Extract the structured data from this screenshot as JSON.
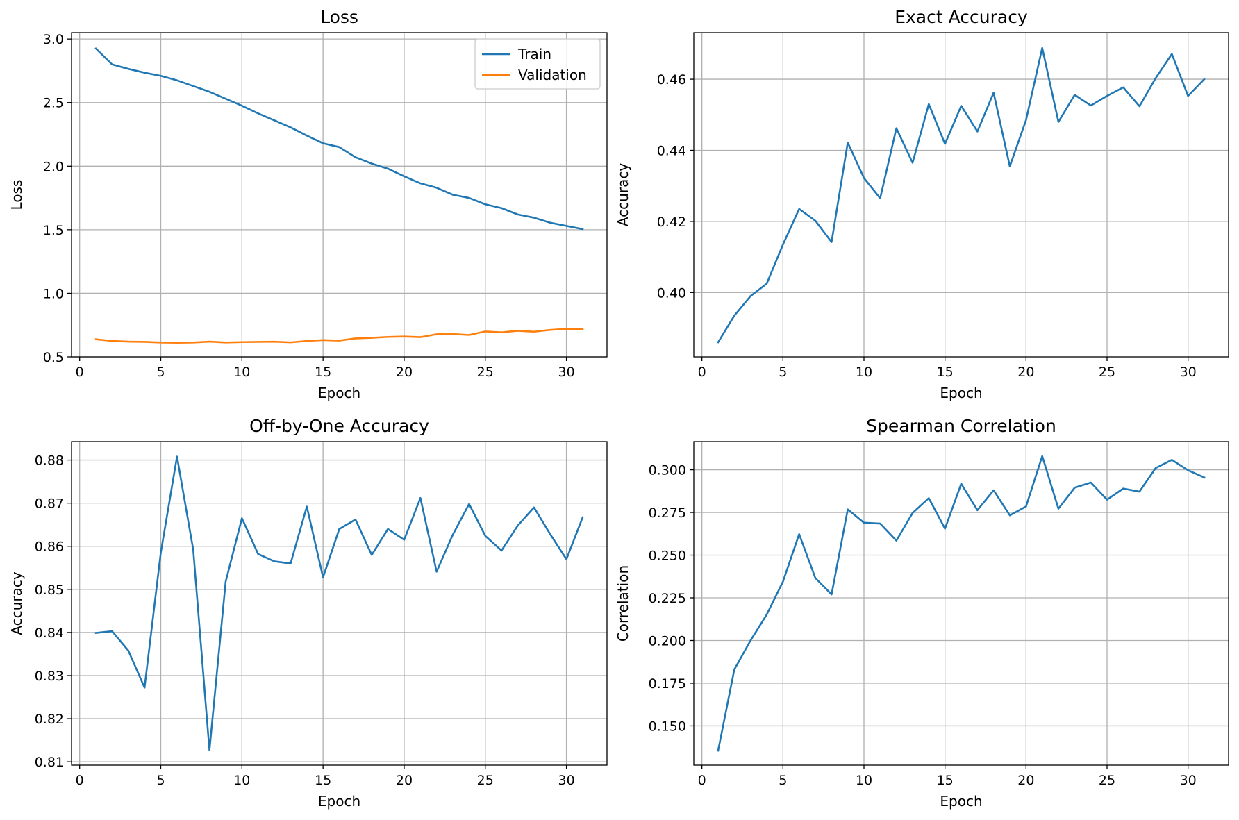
{
  "figure": {
    "background": "#ffffff",
    "colors": {
      "train": "#1f77b4",
      "validation": "#ff7f0e",
      "grid": "#b0b0b0"
    }
  },
  "chart_data": [
    {
      "id": "loss",
      "type": "line",
      "title": "Loss",
      "xlabel": "Epoch",
      "ylabel": "Loss",
      "xlim": [
        -0.5,
        32.5
      ],
      "ylim": [
        0.5,
        3.05
      ],
      "xticks": [
        0,
        5,
        10,
        15,
        20,
        25,
        30
      ],
      "yticks": [
        0.5,
        1.0,
        1.5,
        2.0,
        2.5,
        3.0
      ],
      "ytick_labels": [
        "0.5",
        "1.0",
        "1.5",
        "2.0",
        "2.5",
        "3.0"
      ],
      "grid": true,
      "legend": "upper right",
      "x": [
        1,
        2,
        3,
        4,
        5,
        6,
        7,
        8,
        9,
        10,
        11,
        12,
        13,
        14,
        15,
        16,
        17,
        18,
        19,
        20,
        21,
        22,
        23,
        24,
        25,
        26,
        27,
        28,
        29,
        30,
        31
      ],
      "series": [
        {
          "name": "Train",
          "color": "#1f77b4",
          "values": [
            2.925,
            2.8,
            2.765,
            2.735,
            2.71,
            2.675,
            2.63,
            2.585,
            2.53,
            2.475,
            2.415,
            2.36,
            2.305,
            2.24,
            2.18,
            2.15,
            2.07,
            2.02,
            1.98,
            1.92,
            1.865,
            1.83,
            1.775,
            1.75,
            1.7,
            1.67,
            1.62,
            1.595,
            1.555,
            1.53,
            1.505
          ]
        },
        {
          "name": "Validation",
          "color": "#ff7f0e",
          "values": [
            0.638,
            0.625,
            0.62,
            0.618,
            0.613,
            0.611,
            0.613,
            0.62,
            0.613,
            0.616,
            0.618,
            0.619,
            0.614,
            0.625,
            0.632,
            0.628,
            0.645,
            0.65,
            0.657,
            0.66,
            0.655,
            0.678,
            0.68,
            0.672,
            0.7,
            0.693,
            0.705,
            0.698,
            0.712,
            0.72,
            0.72
          ]
        }
      ]
    },
    {
      "id": "exact",
      "type": "line",
      "title": "Exact Accuracy",
      "xlabel": "Epoch",
      "ylabel": "Accuracy",
      "xlim": [
        -0.5,
        32.5
      ],
      "ylim": [
        0.3819,
        0.4731
      ],
      "xticks": [
        0,
        5,
        10,
        15,
        20,
        25,
        30
      ],
      "yticks": [
        0.4,
        0.42,
        0.44,
        0.46
      ],
      "ytick_labels": [
        "0.40",
        "0.42",
        "0.44",
        "0.46"
      ],
      "grid": true,
      "x": [
        1,
        2,
        3,
        4,
        5,
        6,
        7,
        8,
        9,
        10,
        11,
        12,
        13,
        14,
        15,
        16,
        17,
        18,
        19,
        20,
        21,
        22,
        23,
        24,
        25,
        26,
        27,
        28,
        29,
        30,
        31
      ],
      "series": [
        {
          "color": "#1f77b4",
          "values": [
            0.386,
            0.3935,
            0.399,
            0.4025,
            0.4135,
            0.4235,
            0.4202,
            0.4142,
            0.4422,
            0.4322,
            0.4265,
            0.4462,
            0.4365,
            0.453,
            0.4418,
            0.4525,
            0.4453,
            0.4562,
            0.4355,
            0.4485,
            0.4688,
            0.448,
            0.4556,
            0.4526,
            0.4553,
            0.4577,
            0.4524,
            0.4603,
            0.4671,
            0.4553,
            0.46
          ]
        }
      ]
    },
    {
      "id": "offbyone",
      "type": "line",
      "title": "Off-by-One Accuracy",
      "xlabel": "Epoch",
      "ylabel": "Accuracy",
      "xlim": [
        -0.5,
        32.5
      ],
      "ylim": [
        0.80922,
        0.88428
      ],
      "xticks": [
        0,
        5,
        10,
        15,
        20,
        25,
        30
      ],
      "yticks": [
        0.81,
        0.82,
        0.83,
        0.84,
        0.85,
        0.86,
        0.87,
        0.88
      ],
      "ytick_labels": [
        "0.81",
        "0.82",
        "0.83",
        "0.84",
        "0.85",
        "0.86",
        "0.87",
        "0.88"
      ],
      "grid": true,
      "x": [
        1,
        2,
        3,
        4,
        5,
        6,
        7,
        8,
        9,
        10,
        11,
        12,
        13,
        14,
        15,
        16,
        17,
        18,
        19,
        20,
        21,
        22,
        23,
        24,
        25,
        26,
        27,
        28,
        29,
        30,
        31
      ],
      "series": [
        {
          "color": "#1f77b4",
          "values": [
            0.8399,
            0.8403,
            0.8358,
            0.8272,
            0.8585,
            0.8808,
            0.8592,
            0.8127,
            0.8518,
            0.8665,
            0.8582,
            0.8565,
            0.856,
            0.8692,
            0.8528,
            0.864,
            0.8662,
            0.858,
            0.864,
            0.8615,
            0.8712,
            0.8541,
            0.8627,
            0.8698,
            0.8624,
            0.859,
            0.8648,
            0.869,
            0.8628,
            0.857,
            0.8667
          ]
        }
      ]
    },
    {
      "id": "spearman",
      "type": "line",
      "title": "Spearman Correlation",
      "xlabel": "Epoch",
      "ylabel": "Correlation",
      "xlim": [
        -0.5,
        32.5
      ],
      "ylim": [
        0.127,
        0.3165
      ],
      "xticks": [
        0,
        5,
        10,
        15,
        20,
        25,
        30
      ],
      "yticks": [
        0.15,
        0.175,
        0.2,
        0.225,
        0.25,
        0.275,
        0.3
      ],
      "ytick_labels": [
        "0.150",
        "0.175",
        "0.200",
        "0.225",
        "0.250",
        "0.275",
        "0.300"
      ],
      "grid": true,
      "x": [
        1,
        2,
        3,
        4,
        5,
        6,
        7,
        8,
        9,
        10,
        11,
        12,
        13,
        14,
        15,
        16,
        17,
        18,
        19,
        20,
        21,
        22,
        23,
        24,
        25,
        26,
        27,
        28,
        29,
        30,
        31
      ],
      "series": [
        {
          "color": "#1f77b4",
          "values": [
            0.1355,
            0.183,
            0.2,
            0.2152,
            0.2345,
            0.2623,
            0.2366,
            0.227,
            0.2768,
            0.269,
            0.2685,
            0.2585,
            0.2747,
            0.2834,
            0.2655,
            0.2918,
            0.2763,
            0.288,
            0.2733,
            0.2785,
            0.308,
            0.2772,
            0.2895,
            0.2925,
            0.2825,
            0.289,
            0.2872,
            0.301,
            0.3058,
            0.2997,
            0.2955
          ]
        }
      ]
    }
  ]
}
